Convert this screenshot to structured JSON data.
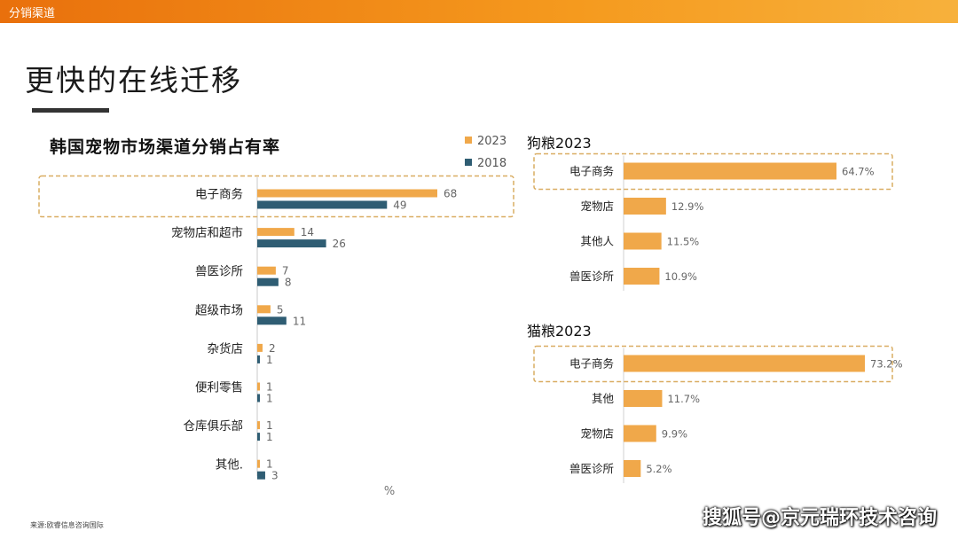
{
  "header": {
    "section": "分销渠道"
  },
  "page": {
    "title": "更快的在线迁移",
    "source": "来源:欧睿信息咨询国际",
    "watermark": "搜狐号@京元瑞环技术咨询"
  },
  "colors": {
    "series_2023": "#f0a84a",
    "series_2018": "#2f5d73",
    "highlight_border": "#d9ad62"
  },
  "chart_data": [
    {
      "type": "bar",
      "orientation": "horizontal",
      "title": "韩国宠物市场渠道分销占有率",
      "xlabel": "%",
      "categories": [
        "电子商务",
        "宠物店和超市",
        "兽医诊所",
        "超级市场",
        "杂货店",
        "便利零售",
        "仓库俱乐部",
        "其他."
      ],
      "series": [
        {
          "name": "2023",
          "values": [
            68,
            14,
            7,
            5,
            2,
            1,
            1,
            1
          ]
        },
        {
          "name": "2018",
          "values": [
            49,
            26,
            8,
            11,
            1,
            1,
            1,
            3
          ]
        }
      ],
      "legend": "top-right",
      "highlight": "电子商务"
    },
    {
      "type": "bar",
      "orientation": "horizontal",
      "title": "狗粮2023",
      "categories": [
        "电子商务",
        "宠物店",
        "其他人",
        "兽医诊所"
      ],
      "values": [
        64.7,
        12.9,
        11.5,
        10.9
      ],
      "labels": [
        "64.7%",
        "12.9%",
        "11.5%",
        "10.9%"
      ],
      "highlight": "电子商务"
    },
    {
      "type": "bar",
      "orientation": "horizontal",
      "title": "猫粮2023",
      "categories": [
        "电子商务",
        "其他",
        "宠物店",
        "兽医诊所"
      ],
      "values": [
        73.2,
        11.7,
        9.9,
        5.2
      ],
      "labels": [
        "73.2%",
        "11.7%",
        "9.9%",
        "5.2%"
      ],
      "highlight": "电子商务"
    }
  ]
}
